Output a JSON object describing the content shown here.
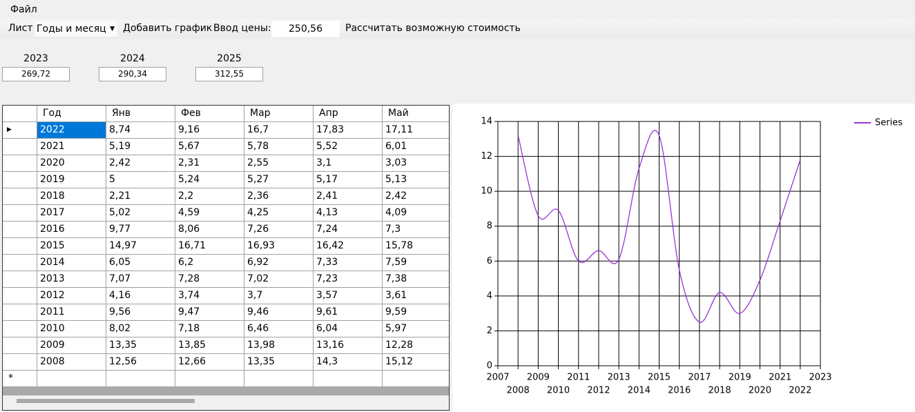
{
  "menu": {
    "file": "Файл"
  },
  "toolbar": {
    "sheet_label": "Лист",
    "sheet_select": "Годы и месяц",
    "add_chart": "Добавить график",
    "price_label": "Ввод цены:",
    "price_input": "250,56",
    "calculate": "Рассчитать возможную стоимость"
  },
  "forecast": [
    {
      "year": "2023",
      "value": "269,72"
    },
    {
      "year": "2024",
      "value": "290,34"
    },
    {
      "year": "2025",
      "value": "312,55"
    }
  ],
  "table": {
    "columns": [
      "Год",
      "Янв",
      "Фев",
      "Мар",
      "Апр",
      "Май"
    ],
    "rows": [
      [
        "2022",
        "8,74",
        "9,16",
        "16,7",
        "17,83",
        "17,11"
      ],
      [
        "2021",
        "5,19",
        "5,67",
        "5,78",
        "5,52",
        "6,01"
      ],
      [
        "2020",
        "2,42",
        "2,31",
        "2,55",
        "3,1",
        "3,03"
      ],
      [
        "2019",
        "5",
        "5,24",
        "5,27",
        "5,17",
        "5,13"
      ],
      [
        "2018",
        "2,21",
        "2,2",
        "2,36",
        "2,41",
        "2,42"
      ],
      [
        "2017",
        "5,02",
        "4,59",
        "4,25",
        "4,13",
        "4,09"
      ],
      [
        "2016",
        "9,77",
        "8,06",
        "7,26",
        "7,24",
        "7,3"
      ],
      [
        "2015",
        "14,97",
        "16,71",
        "16,93",
        "16,42",
        "15,78"
      ],
      [
        "2014",
        "6,05",
        "6,2",
        "6,92",
        "7,33",
        "7,59"
      ],
      [
        "2013",
        "7,07",
        "7,28",
        "7,02",
        "7,23",
        "7,38"
      ],
      [
        "2012",
        "4,16",
        "3,74",
        "3,7",
        "3,57",
        "3,61"
      ],
      [
        "2011",
        "9,56",
        "9,47",
        "9,46",
        "9,61",
        "9,59"
      ],
      [
        "2010",
        "8,02",
        "7,18",
        "6,46",
        "6,04",
        "5,97"
      ],
      [
        "2009",
        "13,35",
        "13,85",
        "13,98",
        "13,16",
        "12,28"
      ],
      [
        "2008",
        "12,56",
        "12,66",
        "13,35",
        "14,3",
        "15,12"
      ]
    ],
    "new_row_marker": "*"
  },
  "chart_data": {
    "type": "line",
    "x": [
      2008,
      2009,
      2010,
      2011,
      2012,
      2013,
      2014,
      2015,
      2016,
      2017,
      2018,
      2019,
      2020,
      2021,
      2022
    ],
    "series": [
      {
        "name": "Series",
        "color": "#9b30d9",
        "values": [
          13.2,
          8.6,
          8.9,
          6.0,
          6.6,
          6.1,
          11.3,
          13.2,
          5.5,
          2.5,
          4.2,
          3.0,
          4.9,
          8.3,
          11.8
        ]
      }
    ],
    "xlim": [
      2007,
      2023
    ],
    "xticks": [
      2007,
      2008,
      2009,
      2010,
      2011,
      2012,
      2013,
      2014,
      2015,
      2016,
      2017,
      2018,
      2019,
      2020,
      2021,
      2022,
      2023
    ],
    "ylim": [
      0,
      14
    ],
    "yticks": [
      0,
      2,
      4,
      6,
      8,
      10,
      12,
      14
    ],
    "grid": true,
    "legend": "top-right"
  }
}
